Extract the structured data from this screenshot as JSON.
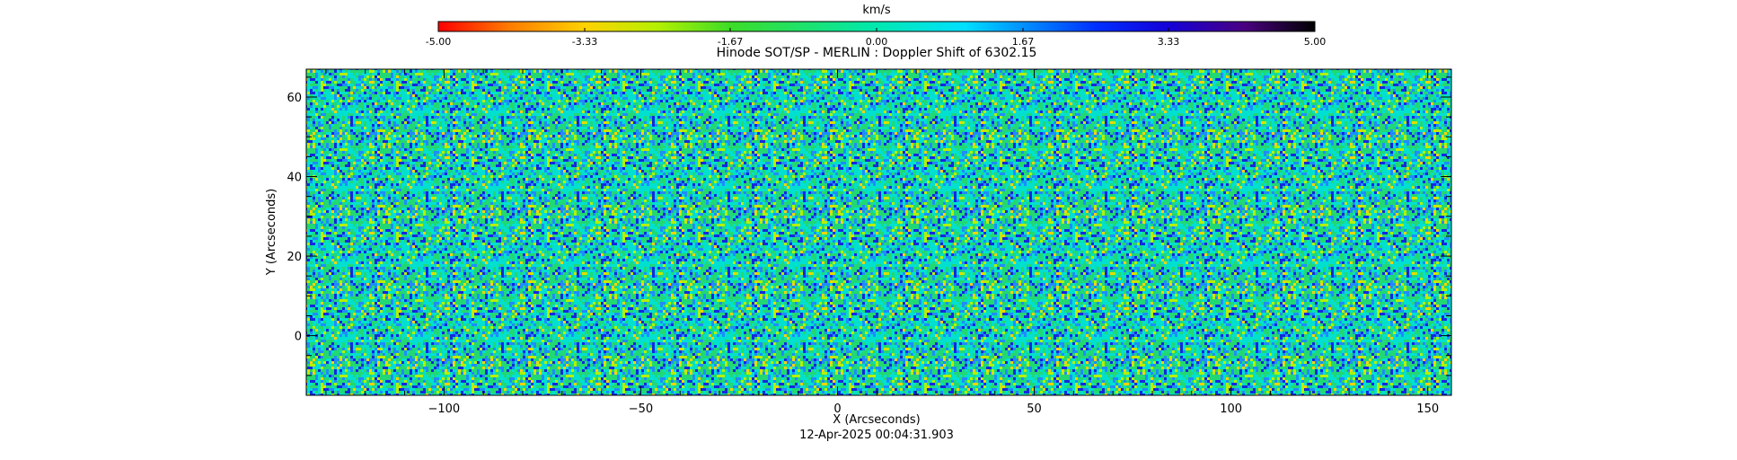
{
  "chart_data": {
    "type": "heatmap",
    "title": "Hinode SOT/SP - MERLIN : Doppler Shift of 6302.15",
    "xlabel": "X (Arcseconds)",
    "ylabel": "Y (Arcseconds)",
    "xlim": [
      -135,
      156
    ],
    "ylim": [
      -15,
      67
    ],
    "x_ticks": [
      -100,
      -50,
      0,
      50,
      100,
      150
    ],
    "y_ticks": [
      0,
      20,
      40,
      60
    ],
    "timestamp": "12-Apr-2025 00:04:31.903",
    "colorbar": {
      "label": "km/s",
      "range": [
        -5.0,
        5.0
      ],
      "tick_values": [
        -5.0,
        -3.33,
        -1.67,
        0.0,
        1.67,
        3.33,
        5.0
      ],
      "tick_labels": [
        "-5.00",
        "-3.33",
        "-1.67",
        "0.00",
        "1.67",
        "3.33",
        "5.00"
      ],
      "colormap": [
        {
          "value": -5.0,
          "color": "#ff0000"
        },
        {
          "value": -4.2,
          "color": "#ff7a00"
        },
        {
          "value": -3.33,
          "color": "#ffd200"
        },
        {
          "value": -2.5,
          "color": "#b4f000"
        },
        {
          "value": -1.67,
          "color": "#3cdc28"
        },
        {
          "value": 0.0,
          "color": "#00e8b0"
        },
        {
          "value": 1.0,
          "color": "#00e0ff"
        },
        {
          "value": 1.67,
          "color": "#0090ff"
        },
        {
          "value": 2.5,
          "color": "#0030ff"
        },
        {
          "value": 3.33,
          "color": "#1400d8"
        },
        {
          "value": 4.2,
          "color": "#4a0080"
        },
        {
          "value": 5.0,
          "color": "#000000"
        }
      ]
    },
    "field_colors": {
      "dominant": "#22d873",
      "secondary": [
        "#00e0d0",
        "#1e8cff",
        "#1428e0",
        "#b4f000",
        "#ffd200"
      ]
    }
  }
}
